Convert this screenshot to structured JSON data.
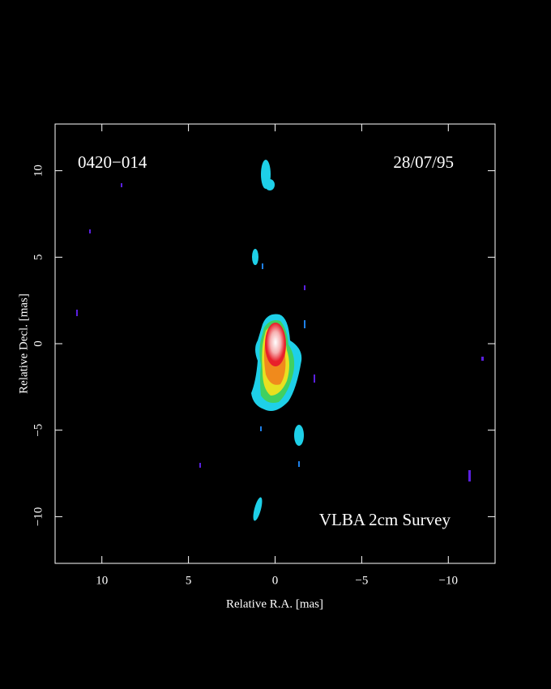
{
  "chart_data": {
    "type": "image",
    "source": "0420−014",
    "date": "28/07/95",
    "survey": "VLBA 2cm Survey",
    "x_label": "Relative R.A. [mas]",
    "y_label": "Relative Decl. [mas]",
    "xlim": [
      12.7,
      -12.7
    ],
    "ylim": [
      -12.7,
      12.7
    ],
    "xticks": [
      10,
      5,
      0,
      {
        "value": -5,
        "label": "−5"
      },
      {
        "value": -10,
        "label": "−10"
      }
    ],
    "yticks": [
      {
        "value": -10,
        "label": "−10"
      },
      {
        "value": -5,
        "label": "−5"
      },
      0,
      5,
      10
    ]
  }
}
